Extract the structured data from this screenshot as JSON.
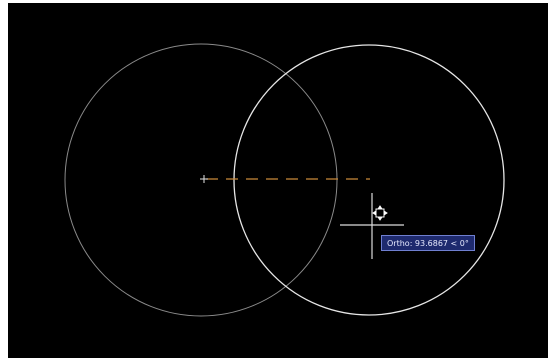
{
  "canvas": {
    "background_color": "#000000"
  },
  "drawing": {
    "existing_circle_color": "#9a9a9a",
    "preview_circle_color": "#e6e6e6",
    "dashed_line_color": "#c98a3a",
    "crosshair_color": "#dcdcdc",
    "cursor_icon": "move-cursor-icon"
  },
  "dynamic_input": {
    "label": "Ortho: 93.6867 < 0°"
  }
}
